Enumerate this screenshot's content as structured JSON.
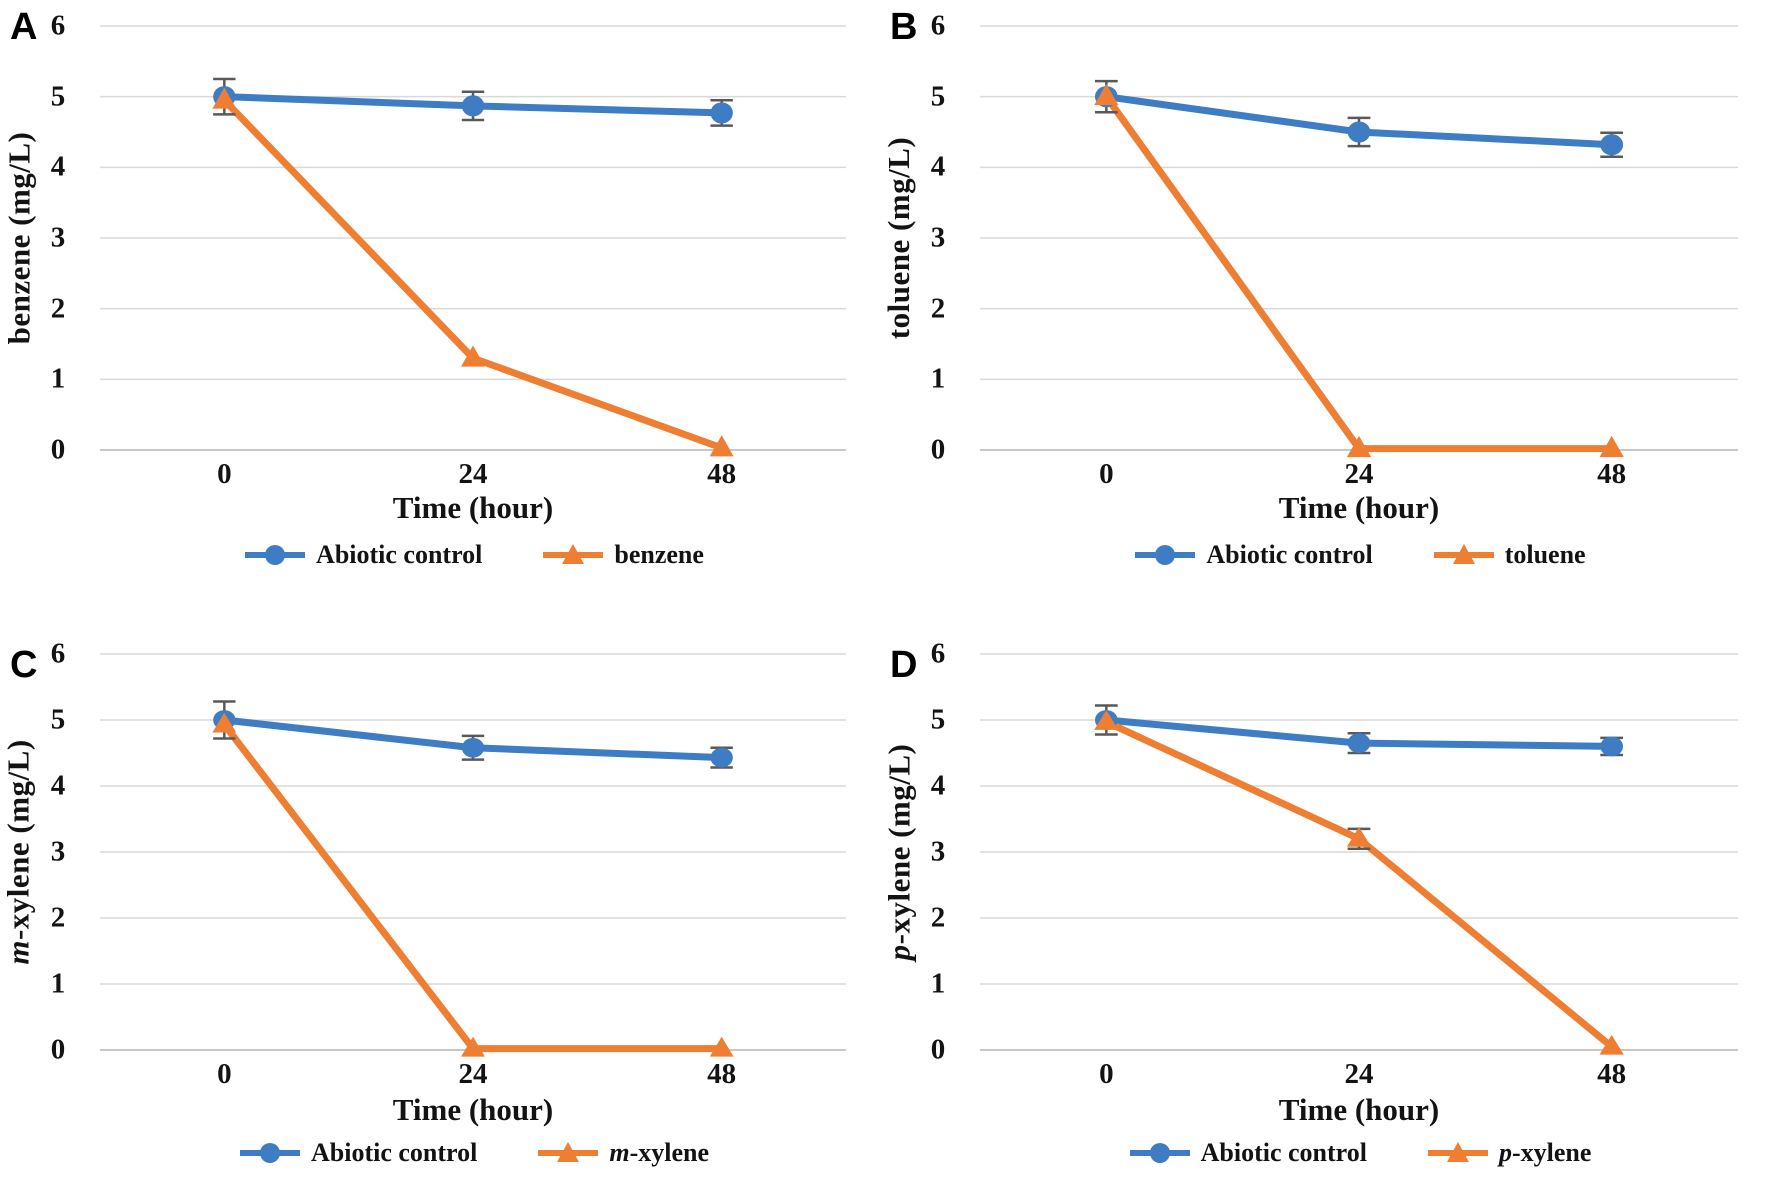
{
  "figure": {
    "background": "#ffffff",
    "description_panels": [
      "A",
      "B",
      "C",
      "D"
    ]
  },
  "colors": {
    "blue": "#3E7DC4",
    "orange": "#EE7E32",
    "error_bar": "#595959",
    "gridline": "#D9D9D9",
    "axis_line": "#C8C8C8",
    "text": "#131313"
  },
  "chart_data": [
    {
      "panel": "A",
      "type": "line",
      "xlabel": "Time (hour)",
      "ylabel_parts": [
        {
          "text": "benzene (mg/L)",
          "italic": false
        }
      ],
      "categories": [
        "0",
        "24",
        "48"
      ],
      "x_values_hours": [
        0,
        24,
        48
      ],
      "ylim": [
        0,
        6
      ],
      "yticks": [
        0,
        1,
        2,
        3,
        4,
        5,
        6
      ],
      "grid": true,
      "legend_position": "bottom",
      "series": [
        {
          "name_parts": [
            {
              "text": "Abiotic control",
              "italic": false
            }
          ],
          "marker": "circle",
          "color_key": "blue",
          "values": [
            5.0,
            4.87,
            4.77
          ],
          "error_bars": [
            0.25,
            0.2,
            0.18
          ]
        },
        {
          "name_parts": [
            {
              "text": "benzene",
              "italic": false
            }
          ],
          "marker": "triangle",
          "color_key": "orange",
          "values": [
            4.95,
            1.3,
            0.03
          ],
          "error_bars": [
            0,
            0,
            0
          ]
        }
      ]
    },
    {
      "panel": "B",
      "type": "line",
      "xlabel": "Time (hour)",
      "ylabel_parts": [
        {
          "text": "toluene (mg/L)",
          "italic": false
        }
      ],
      "categories": [
        "0",
        "24",
        "48"
      ],
      "x_values_hours": [
        0,
        24,
        48
      ],
      "ylim": [
        0,
        6
      ],
      "yticks": [
        0,
        1,
        2,
        3,
        4,
        5,
        6
      ],
      "grid": true,
      "legend_position": "bottom",
      "series": [
        {
          "name_parts": [
            {
              "text": "Abiotic control",
              "italic": false
            }
          ],
          "marker": "circle",
          "color_key": "blue",
          "values": [
            5.0,
            4.5,
            4.32
          ],
          "error_bars": [
            0.22,
            0.2,
            0.17
          ]
        },
        {
          "name_parts": [
            {
              "text": "toluene",
              "italic": false
            }
          ],
          "marker": "triangle",
          "color_key": "orange",
          "values": [
            5.0,
            0.02,
            0.02
          ],
          "error_bars": [
            0,
            0,
            0
          ]
        }
      ]
    },
    {
      "panel": "C",
      "type": "line",
      "xlabel": "Time (hour)",
      "ylabel_parts": [
        {
          "text": "m",
          "italic": true
        },
        {
          "text": "-xylene (mg/L)",
          "italic": false
        }
      ],
      "categories": [
        "0",
        "24",
        "48"
      ],
      "x_values_hours": [
        0,
        24,
        48
      ],
      "ylim": [
        0,
        6
      ],
      "yticks": [
        0,
        1,
        2,
        3,
        4,
        5,
        6
      ],
      "grid": true,
      "legend_position": "bottom",
      "series": [
        {
          "name_parts": [
            {
              "text": "Abiotic control",
              "italic": false
            }
          ],
          "marker": "circle",
          "color_key": "blue",
          "values": [
            5.0,
            4.58,
            4.43
          ],
          "error_bars": [
            0.28,
            0.18,
            0.15
          ]
        },
        {
          "name_parts": [
            {
              "text": "m",
              "italic": true
            },
            {
              "text": "-xylene",
              "italic": false
            }
          ],
          "marker": "triangle",
          "color_key": "orange",
          "values": [
            4.93,
            0.02,
            0.02
          ],
          "error_bars": [
            0,
            0,
            0
          ]
        }
      ]
    },
    {
      "panel": "D",
      "type": "line",
      "xlabel": "Time (hour)",
      "ylabel_parts": [
        {
          "text": "p",
          "italic": true
        },
        {
          "text": "-xylene (mg/L)",
          "italic": false
        }
      ],
      "categories": [
        "0",
        "24",
        "48"
      ],
      "x_values_hours": [
        0,
        24,
        48
      ],
      "ylim": [
        0,
        6
      ],
      "yticks": [
        0,
        1,
        2,
        3,
        4,
        5,
        6
      ],
      "grid": true,
      "legend_position": "bottom",
      "series": [
        {
          "name_parts": [
            {
              "text": "Abiotic control",
              "italic": false
            }
          ],
          "marker": "circle",
          "color_key": "blue",
          "values": [
            5.0,
            4.65,
            4.6
          ],
          "error_bars": [
            0.22,
            0.15,
            0.13
          ]
        },
        {
          "name_parts": [
            {
              "text": "p",
              "italic": true
            },
            {
              "text": "-xylene",
              "italic": false
            }
          ],
          "marker": "triangle",
          "color_key": "orange",
          "values": [
            4.97,
            3.2,
            0.05
          ],
          "error_bars": [
            0,
            0.15,
            0
          ]
        }
      ]
    }
  ]
}
